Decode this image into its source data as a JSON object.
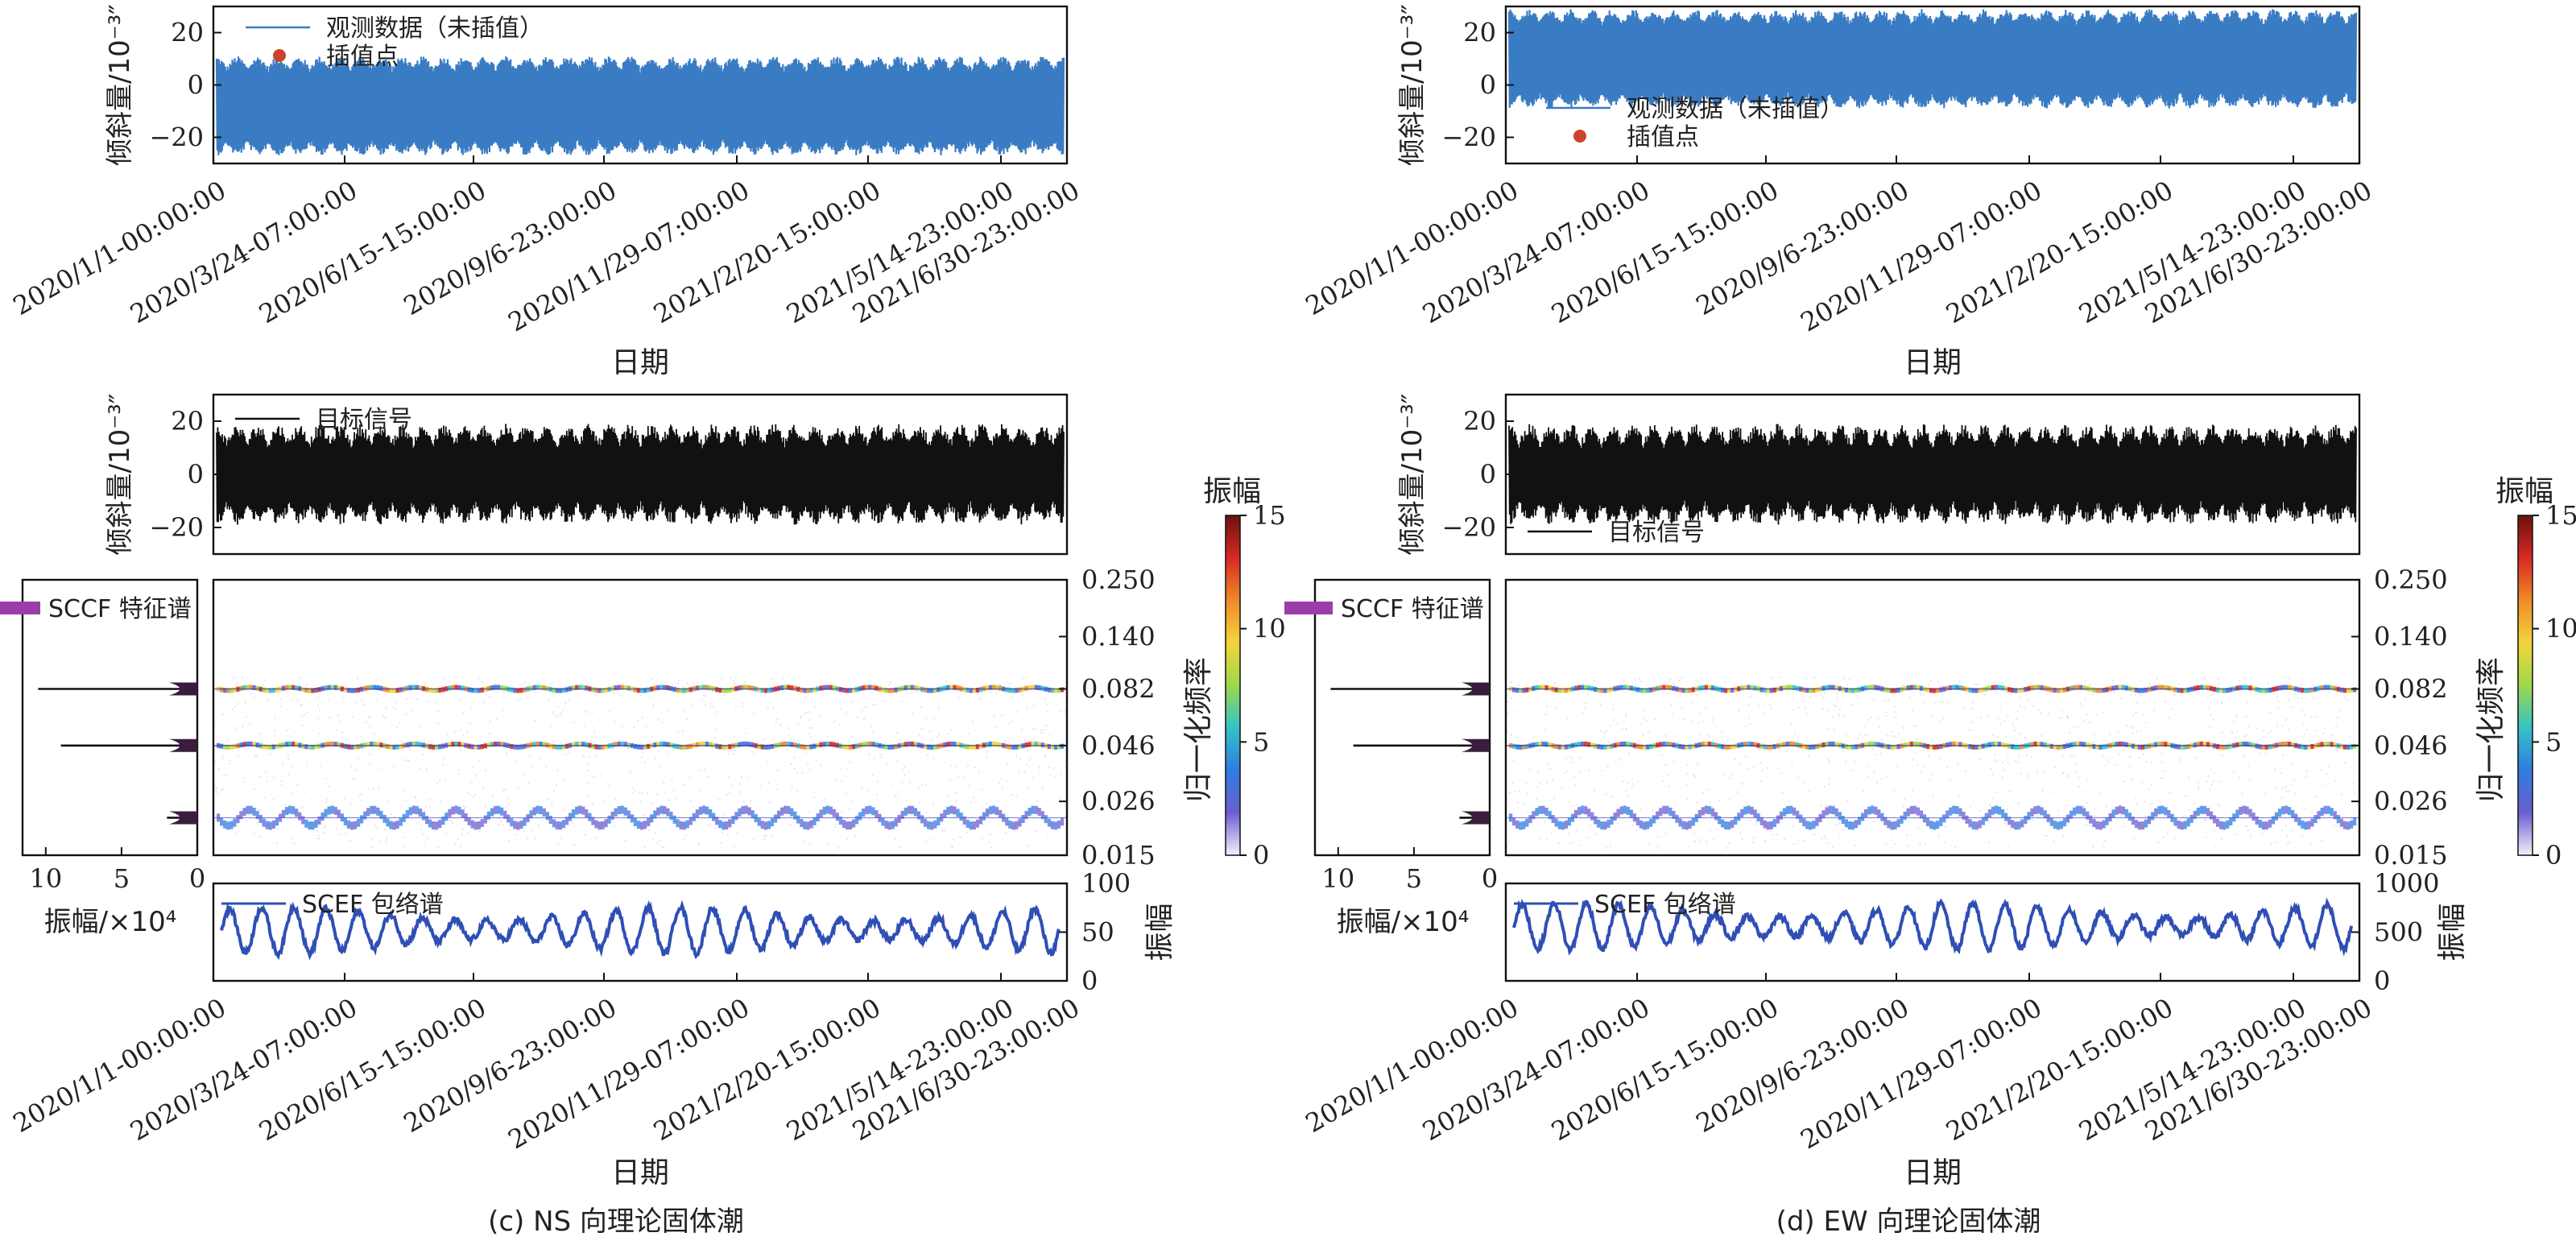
{
  "figure": {
    "panels": [
      {
        "id": "c",
        "caption": "(c) NS 向理论固体潮",
        "date_labels": [
          "2020/1/1-00:00:00",
          "2020/3/24-07:00:00",
          "2020/6/15-15:00:00",
          "2020/9/6-23:00:00",
          "2020/11/29-07:00:00",
          "2021/2/20-15:00:00",
          "2021/5/14-23:00:00",
          "2021/6/30-23:00:00"
        ],
        "x_axis_label": "日期",
        "y_axis_label": "倾斜量/10⁻³″",
        "observed_legend": "观测数据（未插值）",
        "interp_legend": "插值点",
        "target_legend": "目标信号",
        "sccf_legend": "SCCF 特征谱",
        "scef_legend": "SCEF 包络谱",
        "freq_axis_label": "归一化频率",
        "amp_axis_label": "振幅/×10⁴",
        "envelope_axis_label": "振幅",
        "colorbar_title": "振幅",
        "observed_yticks": [
          "20",
          "0",
          "−20"
        ],
        "target_yticks": [
          "20",
          "0",
          "−20"
        ],
        "freq_ticks": [
          "0.250",
          "0.140",
          "0.082",
          "0.046",
          "0.026",
          "0.015"
        ],
        "amp_ticks": [
          "10",
          "5",
          "0"
        ],
        "envelope_ticks": [
          "100",
          "50",
          "0"
        ],
        "colorbar_ticks": [
          "15",
          "10",
          "5",
          "0"
        ],
        "observed_mean": -8,
        "target_mean": 0,
        "legend_observed_position": "top-left",
        "legend_target_position": "top-left"
      },
      {
        "id": "d",
        "caption": "(d) EW 向理论固体潮",
        "date_labels": [
          "2020/1/1-00:00:00",
          "2020/3/24-07:00:00",
          "2020/6/15-15:00:00",
          "2020/9/6-23:00:00",
          "2020/11/29-07:00:00",
          "2021/2/20-15:00:00",
          "2021/5/14-23:00:00",
          "2021/6/30-23:00:00"
        ],
        "x_axis_label": "日期",
        "y_axis_label": "倾斜量/10⁻³″",
        "observed_legend": "观测数据（未插值）",
        "interp_legend": "插值点",
        "target_legend": "目标信号",
        "sccf_legend": "SCCF 特征谱",
        "scef_legend": "SCEF 包络谱",
        "freq_axis_label": "归一化频率",
        "amp_axis_label": "振幅/×10⁴",
        "envelope_axis_label": "振幅",
        "colorbar_title": "振幅",
        "observed_yticks": [
          "20",
          "0",
          "−20"
        ],
        "target_yticks": [
          "20",
          "0",
          "−20"
        ],
        "freq_ticks": [
          "0.250",
          "0.140",
          "0.082",
          "0.046",
          "0.026",
          "0.015"
        ],
        "amp_ticks": [
          "10",
          "5",
          "0"
        ],
        "envelope_ticks": [
          "1000",
          "500",
          "0"
        ],
        "colorbar_ticks": [
          "15",
          "10",
          "5",
          "0"
        ],
        "observed_mean": 10,
        "target_mean": 0,
        "legend_observed_position": "bottom-left",
        "legend_target_position": "bottom-left"
      }
    ]
  },
  "chart_data": [
    {
      "type": "line",
      "panel": "c",
      "series": [
        {
          "name": "观测数据（未插值）",
          "color": "#3a7cc4"
        },
        {
          "name": "插值点",
          "color": "#c8442c"
        }
      ],
      "ylim": [
        -30,
        30
      ],
      "x_start": "2020/1/1-00:00:00",
      "x_end": "2021/6/30-23:00:00",
      "approx_envelope_cycles": 41
    },
    {
      "type": "line",
      "panel": "c",
      "series": [
        {
          "name": "目标信号",
          "color": "#111111"
        }
      ],
      "ylim": [
        -30,
        30
      ]
    },
    {
      "type": "heatmap",
      "panel": "c",
      "freq_bands": [
        0.082,
        0.046,
        0.022
      ],
      "sccf_peaks": [
        {
          "freq": 0.082,
          "amp": 10.5
        },
        {
          "freq": 0.046,
          "amp": 9.0
        },
        {
          "freq": 0.022,
          "amp": 2.0
        }
      ],
      "amp_range": [
        0,
        15
      ],
      "colormap": [
        "#f4f0fa",
        "#6a5fd0",
        "#2f7ce0",
        "#35c2c8",
        "#9cd94a",
        "#f3d43b",
        "#f08a2a",
        "#d62a22",
        "#6e1010"
      ]
    },
    {
      "type": "line",
      "panel": "c",
      "series": [
        {
          "name": "SCEF 包络谱",
          "color": "#2f4fb5"
        }
      ],
      "ylim": [
        0,
        100
      ],
      "baseline": 52,
      "amplitude": 24
    },
    {
      "type": "line",
      "panel": "d",
      "series": [
        {
          "name": "观测数据（未插值）",
          "color": "#3a7cc4"
        },
        {
          "name": "插值点",
          "color": "#c8442c"
        }
      ],
      "ylim": [
        -30,
        30
      ],
      "x_start": "2020/1/1-00:00:00",
      "x_end": "2021/6/30-23:00:00",
      "approx_envelope_cycles": 41
    },
    {
      "type": "line",
      "panel": "d",
      "series": [
        {
          "name": "目标信号",
          "color": "#111111"
        }
      ],
      "ylim": [
        -30,
        30
      ]
    },
    {
      "type": "heatmap",
      "panel": "d",
      "freq_bands": [
        0.082,
        0.046,
        0.022
      ],
      "sccf_peaks": [
        {
          "freq": 0.082,
          "amp": 10.5
        },
        {
          "freq": 0.046,
          "amp": 9.0
        },
        {
          "freq": 0.022,
          "amp": 2.0
        }
      ],
      "amp_range": [
        0,
        15
      ],
      "colormap": [
        "#f4f0fa",
        "#6a5fd0",
        "#2f7ce0",
        "#35c2c8",
        "#9cd94a",
        "#f3d43b",
        "#f08a2a",
        "#d62a22",
        "#6e1010"
      ]
    },
    {
      "type": "line",
      "panel": "d",
      "series": [
        {
          "name": "SCEF 包络谱",
          "color": "#2f4fb5"
        }
      ],
      "ylim": [
        0,
        1000
      ],
      "baseline": 560,
      "amplitude": 240
    }
  ]
}
